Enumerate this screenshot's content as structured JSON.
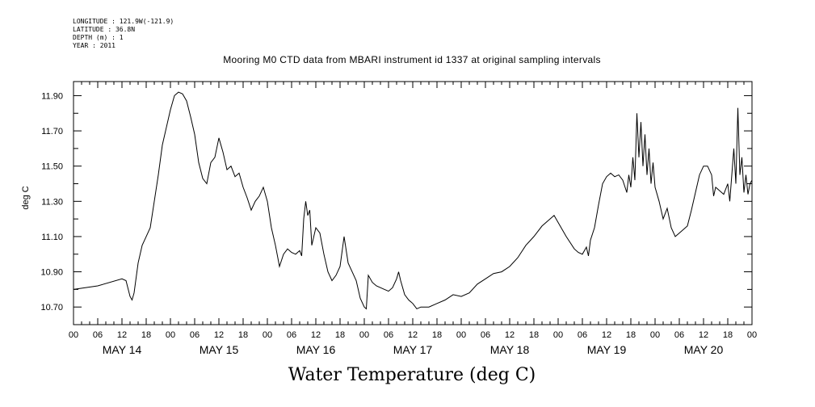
{
  "header": {
    "longitude": "LONGITUDE : 121.9W(-121.9)",
    "latitude": "LATITUDE : 36.8N",
    "depth": "DEPTH (m) : 1",
    "year": "YEAR : 2011"
  },
  "chart_data": {
    "type": "line",
    "title": "Mooring M0 CTD data from MBARI instrument id 1337 at original sampling intervals",
    "bottom_title": "Water Temperature (deg C)",
    "ylabel": "deg C",
    "xlabel": "",
    "ylim": [
      10.6,
      11.98
    ],
    "y_ticks": [
      "10.70",
      "10.90",
      "11.10",
      "11.30",
      "11.50",
      "11.70",
      "11.90"
    ],
    "x_unit": "hours since 00 MAY 14",
    "xlim": [
      0,
      168
    ],
    "x_tick_hours": [
      "00",
      "06",
      "12",
      "18",
      "00",
      "06",
      "12",
      "18",
      "00",
      "06",
      "12",
      "18",
      "00",
      "06",
      "12",
      "18",
      "00",
      "06",
      "12",
      "18",
      "00",
      "06",
      "12",
      "18",
      "00",
      "06",
      "12",
      "18",
      "00"
    ],
    "day_labels": [
      "MAY 14",
      "MAY 15",
      "MAY 16",
      "MAY 17",
      "MAY 18",
      "MAY 19",
      "MAY 20"
    ],
    "grid": false,
    "series": [
      {
        "color": "#000000",
        "points": [
          [
            0,
            10.8
          ],
          [
            6,
            10.82
          ],
          [
            12,
            10.86
          ],
          [
            13,
            10.85
          ],
          [
            14,
            10.76
          ],
          [
            14.5,
            10.74
          ],
          [
            15,
            10.78
          ],
          [
            16,
            10.95
          ],
          [
            17,
            11.05
          ],
          [
            18,
            11.1
          ],
          [
            19,
            11.15
          ],
          [
            20,
            11.3
          ],
          [
            21,
            11.45
          ],
          [
            22,
            11.62
          ],
          [
            23,
            11.72
          ],
          [
            24,
            11.82
          ],
          [
            25,
            11.9
          ],
          [
            26,
            11.92
          ],
          [
            27,
            11.91
          ],
          [
            28,
            11.87
          ],
          [
            29,
            11.78
          ],
          [
            30,
            11.68
          ],
          [
            31,
            11.52
          ],
          [
            32,
            11.43
          ],
          [
            33,
            11.4
          ],
          [
            34,
            11.52
          ],
          [
            35,
            11.55
          ],
          [
            36,
            11.66
          ],
          [
            37,
            11.58
          ],
          [
            38,
            11.48
          ],
          [
            39,
            11.5
          ],
          [
            40,
            11.44
          ],
          [
            41,
            11.46
          ],
          [
            42,
            11.38
          ],
          [
            43,
            11.32
          ],
          [
            44,
            11.25
          ],
          [
            45,
            11.3
          ],
          [
            46,
            11.33
          ],
          [
            47,
            11.38
          ],
          [
            48,
            11.3
          ],
          [
            49,
            11.15
          ],
          [
            50,
            11.05
          ],
          [
            51,
            10.93
          ],
          [
            52,
            11.0
          ],
          [
            53,
            11.03
          ],
          [
            54,
            11.01
          ],
          [
            55,
            11.0
          ],
          [
            56,
            11.02
          ],
          [
            56.5,
            10.99
          ],
          [
            57,
            11.2
          ],
          [
            57.5,
            11.3
          ],
          [
            58,
            11.22
          ],
          [
            58.5,
            11.25
          ],
          [
            59,
            11.05
          ],
          [
            60,
            11.15
          ],
          [
            61,
            11.12
          ],
          [
            62,
            11.0
          ],
          [
            63,
            10.9
          ],
          [
            64,
            10.85
          ],
          [
            65,
            10.88
          ],
          [
            66,
            10.93
          ],
          [
            67,
            11.1
          ],
          [
            68,
            10.95
          ],
          [
            69,
            10.9
          ],
          [
            70,
            10.85
          ],
          [
            71,
            10.75
          ],
          [
            72,
            10.7
          ],
          [
            72.5,
            10.69
          ],
          [
            73,
            10.88
          ],
          [
            74,
            10.84
          ],
          [
            75,
            10.82
          ],
          [
            76,
            10.81
          ],
          [
            77,
            10.8
          ],
          [
            78,
            10.79
          ],
          [
            79,
            10.81
          ],
          [
            80,
            10.86
          ],
          [
            80.5,
            10.9
          ],
          [
            81,
            10.85
          ],
          [
            82,
            10.77
          ],
          [
            83,
            10.74
          ],
          [
            84,
            10.72
          ],
          [
            85,
            10.69
          ],
          [
            86,
            10.7
          ],
          [
            88,
            10.7
          ],
          [
            90,
            10.72
          ],
          [
            92,
            10.74
          ],
          [
            94,
            10.77
          ],
          [
            96,
            10.76
          ],
          [
            98,
            10.78
          ],
          [
            100,
            10.83
          ],
          [
            102,
            10.86
          ],
          [
            104,
            10.89
          ],
          [
            106,
            10.9
          ],
          [
            108,
            10.93
          ],
          [
            110,
            10.98
          ],
          [
            112,
            11.05
          ],
          [
            114,
            11.1
          ],
          [
            116,
            11.16
          ],
          [
            118,
            11.2
          ],
          [
            119,
            11.22
          ],
          [
            120,
            11.18
          ],
          [
            122,
            11.1
          ],
          [
            124,
            11.03
          ],
          [
            125,
            11.01
          ],
          [
            126,
            11.0
          ],
          [
            127,
            11.04
          ],
          [
            127.5,
            10.99
          ],
          [
            128,
            11.08
          ],
          [
            129,
            11.15
          ],
          [
            130,
            11.28
          ],
          [
            131,
            11.4
          ],
          [
            132,
            11.44
          ],
          [
            133,
            11.46
          ],
          [
            134,
            11.44
          ],
          [
            135,
            11.45
          ],
          [
            136,
            11.42
          ],
          [
            137,
            11.35
          ],
          [
            137.5,
            11.45
          ],
          [
            138,
            11.38
          ],
          [
            138.5,
            11.55
          ],
          [
            139,
            11.42
          ],
          [
            139.5,
            11.8
          ],
          [
            140,
            11.55
          ],
          [
            140.5,
            11.75
          ],
          [
            141,
            11.5
          ],
          [
            141.5,
            11.68
          ],
          [
            142,
            11.45
          ],
          [
            142.5,
            11.6
          ],
          [
            143,
            11.4
          ],
          [
            143.5,
            11.52
          ],
          [
            144,
            11.38
          ],
          [
            145,
            11.3
          ],
          [
            146,
            11.2
          ],
          [
            147,
            11.26
          ],
          [
            148,
            11.15
          ],
          [
            149,
            11.1
          ],
          [
            150,
            11.12
          ],
          [
            152,
            11.16
          ],
          [
            153,
            11.25
          ],
          [
            154,
            11.35
          ],
          [
            155,
            11.45
          ],
          [
            156,
            11.5
          ],
          [
            157,
            11.5
          ],
          [
            158,
            11.45
          ],
          [
            158.5,
            11.33
          ],
          [
            159,
            11.38
          ],
          [
            160,
            11.36
          ],
          [
            161,
            11.34
          ],
          [
            162,
            11.4
          ],
          [
            162.5,
            11.3
          ],
          [
            163,
            11.45
          ],
          [
            163.5,
            11.6
          ],
          [
            164,
            11.4
          ],
          [
            164.5,
            11.83
          ],
          [
            165,
            11.45
          ],
          [
            165.5,
            11.55
          ],
          [
            166,
            11.35
          ],
          [
            166.5,
            11.45
          ],
          [
            167,
            11.34
          ],
          [
            167.5,
            11.4
          ],
          [
            168,
            11.42
          ]
        ]
      }
    ]
  }
}
